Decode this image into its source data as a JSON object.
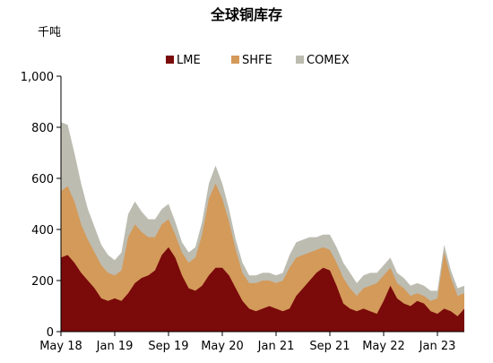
{
  "chart_data": {
    "type": "area",
    "stacked": true,
    "title": "全球铜库存",
    "ylabel": "千吨",
    "xlabel": "",
    "ylim": [
      0,
      1000
    ],
    "yticks": [
      "0",
      "200",
      "400",
      "600",
      "800",
      "1,000"
    ],
    "xtick_labels": [
      "May 18",
      "Jan 19",
      "Sep 19",
      "May 20",
      "Jan 21",
      "Sep 21",
      "May 22",
      "Jan 23"
    ],
    "legend_position": "top-center",
    "grid": false,
    "x": [
      "2018-05",
      "2018-06",
      "2018-07",
      "2018-08",
      "2018-09",
      "2018-10",
      "2018-11",
      "2018-12",
      "2019-01",
      "2019-02",
      "2019-03",
      "2019-04",
      "2019-05",
      "2019-06",
      "2019-07",
      "2019-08",
      "2019-09",
      "2019-10",
      "2019-11",
      "2019-12",
      "2020-01",
      "2020-02",
      "2020-03",
      "2020-04",
      "2020-05",
      "2020-06",
      "2020-07",
      "2020-08",
      "2020-09",
      "2020-10",
      "2020-11",
      "2020-12",
      "2021-01",
      "2021-02",
      "2021-03",
      "2021-04",
      "2021-05",
      "2021-06",
      "2021-07",
      "2021-08",
      "2021-09",
      "2021-10",
      "2021-11",
      "2021-12",
      "2022-01",
      "2022-02",
      "2022-03",
      "2022-04",
      "2022-05",
      "2022-06",
      "2022-07",
      "2022-08",
      "2022-09",
      "2022-10",
      "2022-11",
      "2022-12",
      "2023-01",
      "2023-02",
      "2023-03",
      "2023-04",
      "2023-05"
    ],
    "series": [
      {
        "name": "LME",
        "color": "#7b0a0a",
        "values": [
          290,
          300,
          270,
          230,
          200,
          170,
          130,
          120,
          130,
          120,
          150,
          190,
          210,
          220,
          240,
          300,
          330,
          290,
          220,
          170,
          160,
          180,
          220,
          250,
          250,
          220,
          170,
          120,
          90,
          80,
          90,
          100,
          90,
          80,
          90,
          140,
          170,
          200,
          230,
          250,
          240,
          180,
          110,
          90,
          80,
          90,
          80,
          70,
          120,
          180,
          130,
          110,
          100,
          120,
          110,
          80,
          70,
          90,
          80,
          60,
          90
        ]
      },
      {
        "name": "SHFE",
        "color": "#d39a5a",
        "values": [
          260,
          270,
          240,
          190,
          160,
          140,
          130,
          110,
          90,
          120,
          220,
          230,
          180,
          150,
          130,
          120,
          110,
          90,
          90,
          100,
          130,
          200,
          300,
          330,
          270,
          210,
          150,
          110,
          100,
          110,
          110,
          100,
          100,
          120,
          160,
          150,
          130,
          110,
          90,
          80,
          80,
          90,
          100,
          80,
          60,
          80,
          100,
          120,
          100,
          70,
          60,
          60,
          40,
          30,
          30,
          40,
          60,
          220,
          130,
          80,
          60
        ]
      },
      {
        "name": "COMEX",
        "color": "#bdbcb1",
        "values": [
          270,
          240,
          190,
          160,
          120,
          100,
          80,
          70,
          60,
          70,
          90,
          90,
          80,
          70,
          70,
          60,
          60,
          50,
          40,
          40,
          40,
          50,
          60,
          70,
          60,
          50,
          40,
          40,
          30,
          30,
          30,
          30,
          30,
          30,
          50,
          60,
          60,
          60,
          50,
          50,
          60,
          60,
          60,
          60,
          50,
          50,
          50,
          40,
          40,
          40,
          40,
          40,
          40,
          40,
          40,
          40,
          30,
          30,
          30,
          30,
          30
        ]
      }
    ]
  }
}
